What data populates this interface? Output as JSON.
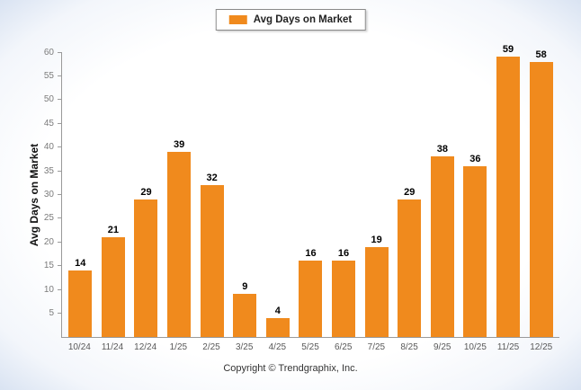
{
  "chart_data": {
    "type": "bar",
    "title": "",
    "legend": "Avg Days on Market",
    "ylabel": "Avg Days on Market",
    "categories": [
      "10/24",
      "11/24",
      "12/24",
      "1/25",
      "2/25",
      "3/25",
      "4/25",
      "5/25",
      "6/25",
      "7/25",
      "8/25",
      "9/25",
      "10/25",
      "11/25",
      "12/25"
    ],
    "values": [
      14,
      21,
      29,
      39,
      32,
      9,
      4,
      16,
      16,
      19,
      29,
      38,
      36,
      59,
      58
    ],
    "ylim": [
      0,
      60
    ],
    "ytick_step": 5,
    "bar_color": "#F08A1D",
    "grid": false,
    "legend_position": "top",
    "data_labels": true
  },
  "footer": {
    "copyright": "Copyright © Trendgraphix, Inc."
  }
}
